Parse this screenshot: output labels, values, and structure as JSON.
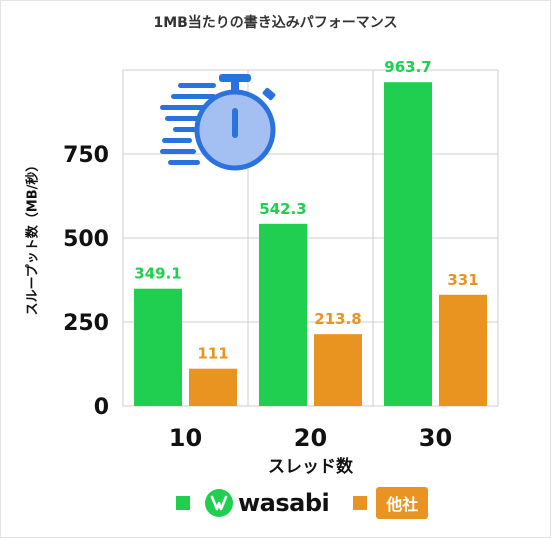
{
  "chart_data": {
    "type": "bar",
    "title": "1MB当たりの書き込みパフォーマンス",
    "xlabel": "スレッド数",
    "ylabel": "スループット数（MB/秒）",
    "categories": [
      "10",
      "20",
      "30"
    ],
    "ylim": [
      0,
      1000
    ],
    "yticks": [
      0,
      250,
      500,
      750
    ],
    "grid": true,
    "legend": "bottom",
    "series": [
      {
        "name": "wasabi",
        "values": [
          349.1,
          542.3,
          963.7
        ],
        "labels": [
          "349.1",
          "542.3",
          "963.7"
        ],
        "color": "#20cf4f"
      },
      {
        "name": "他社",
        "values": [
          111,
          213.8,
          331
        ],
        "labels": [
          "111",
          "213.8",
          "331"
        ],
        "color": "#e99321"
      }
    ],
    "icon": "stopwatch-icon"
  }
}
